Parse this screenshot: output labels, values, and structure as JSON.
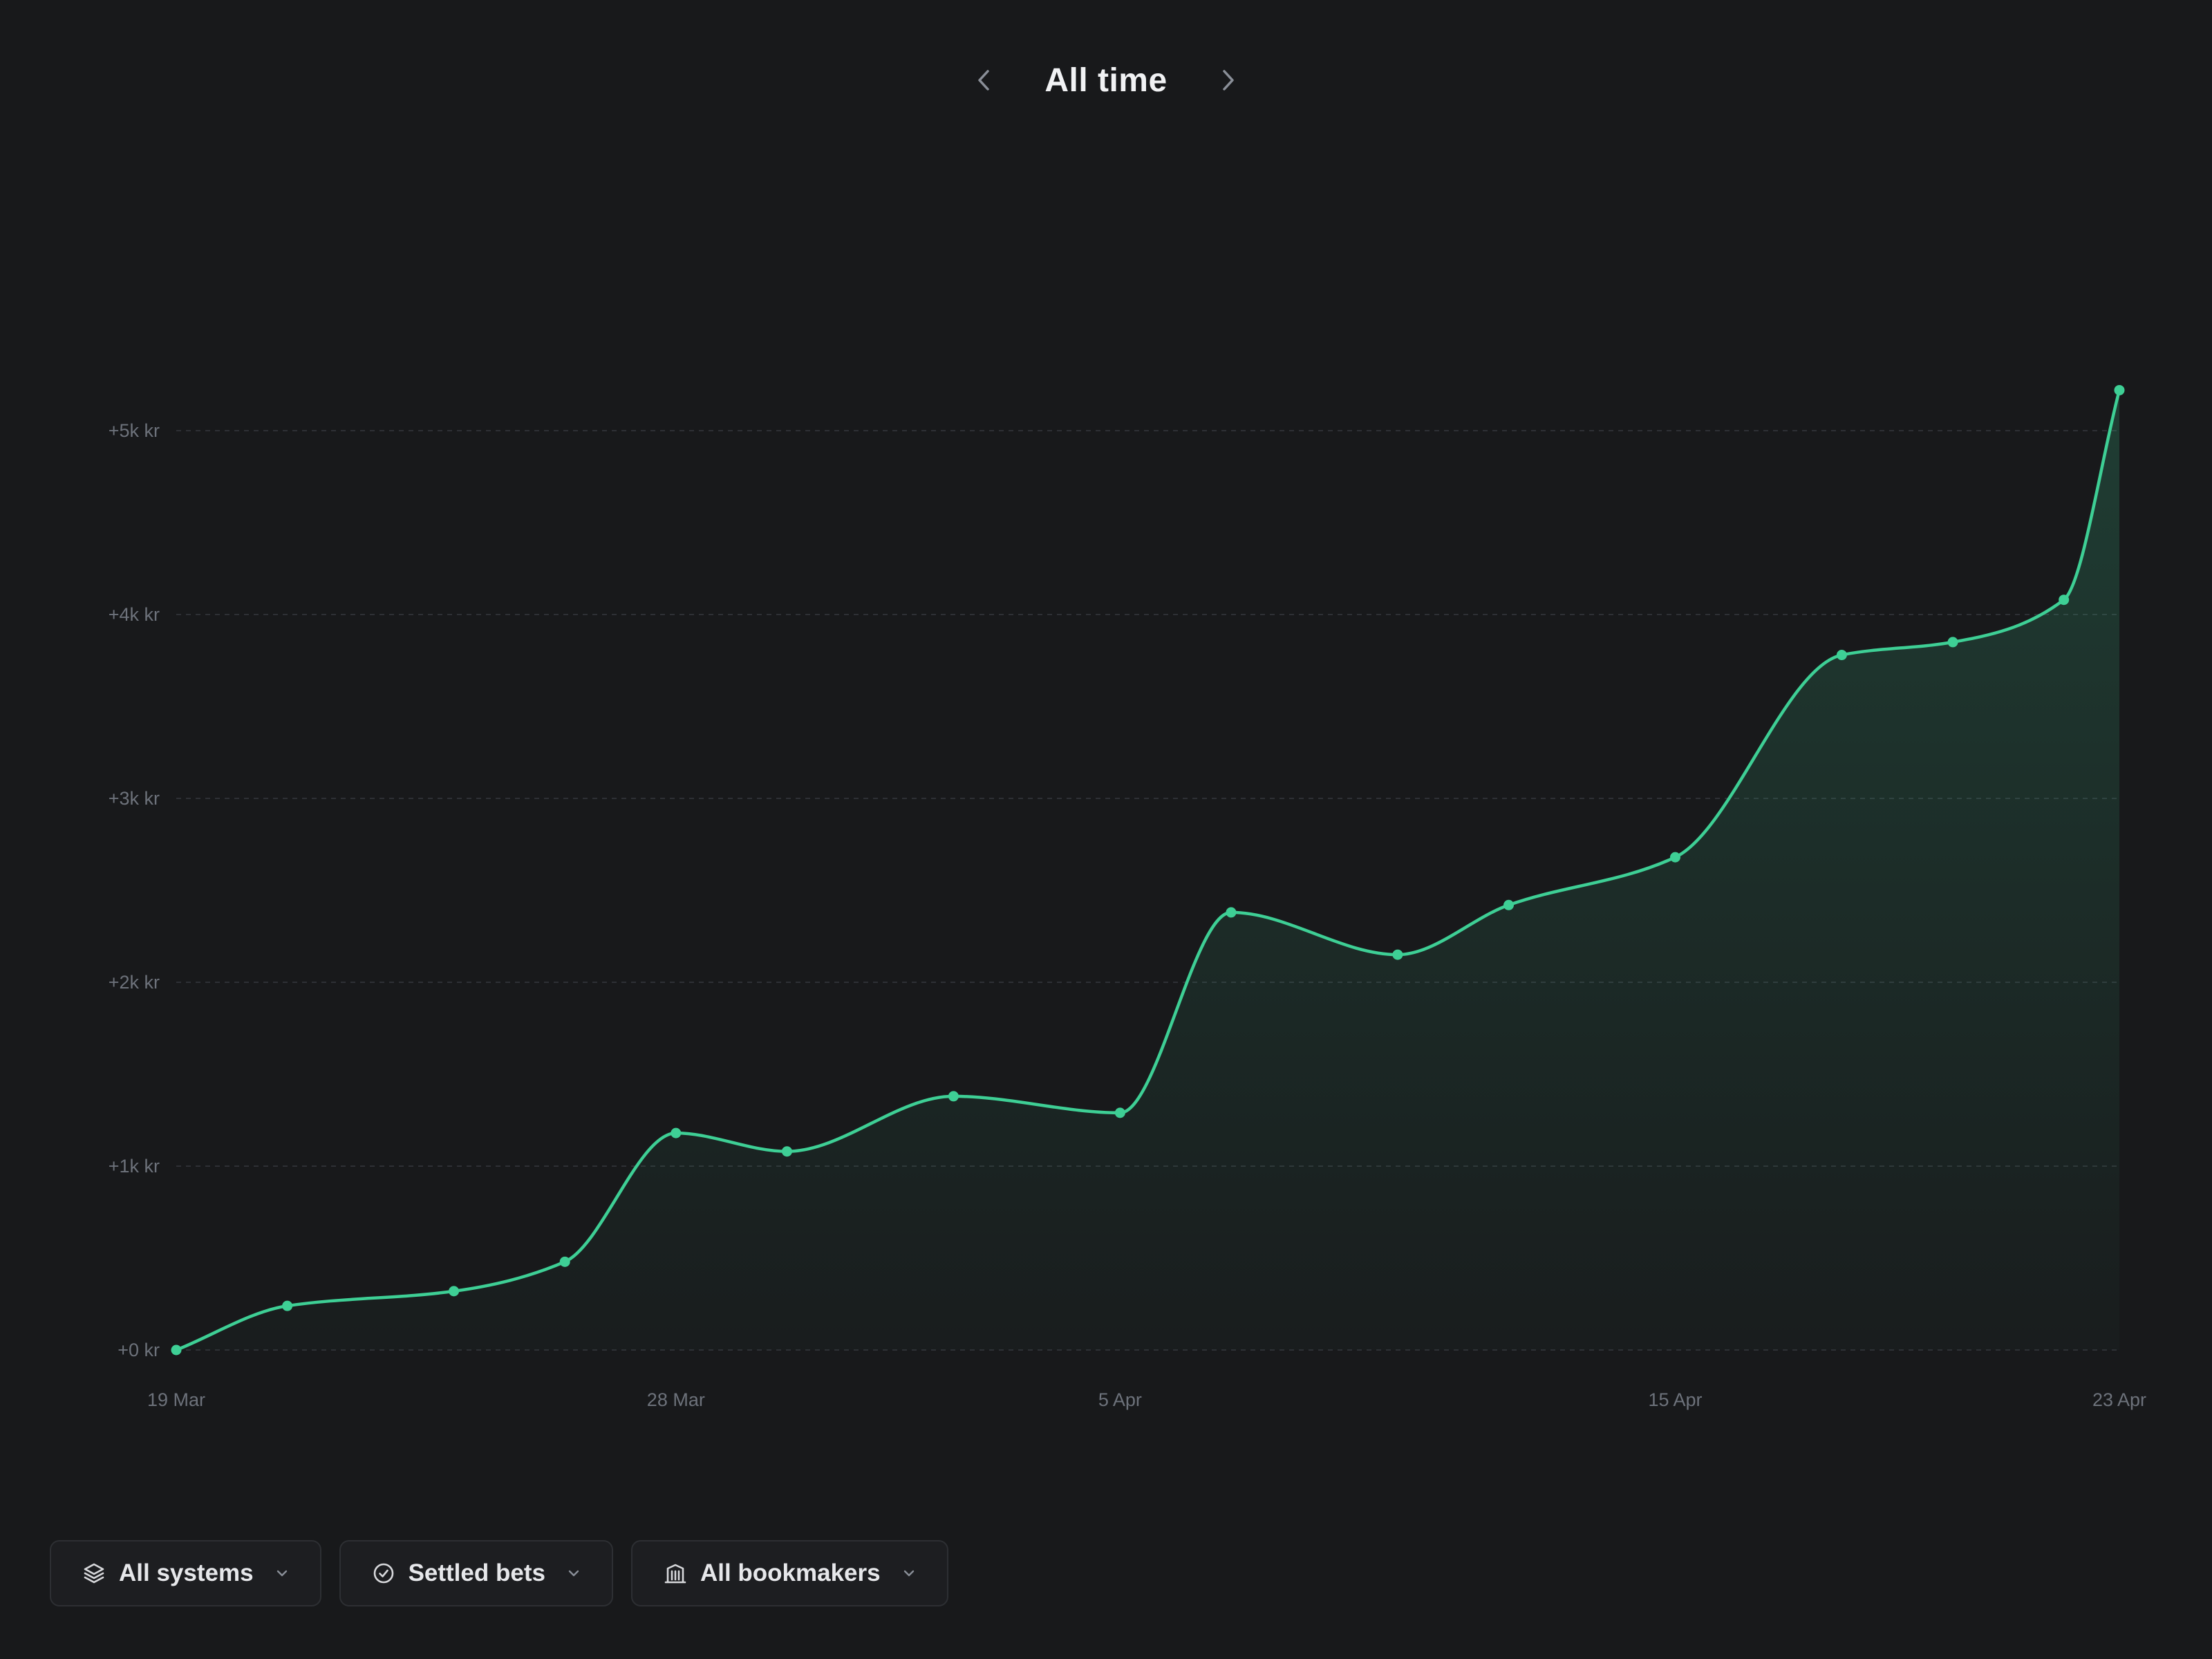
{
  "header": {
    "title": "All time",
    "prev_icon": "chevron-left-icon",
    "next_icon": "chevron-right-icon"
  },
  "filters": [
    {
      "label": "All systems",
      "icon": "layers-icon"
    },
    {
      "label": "Settled bets",
      "icon": "check-circle-icon"
    },
    {
      "label": "All bookmakers",
      "icon": "building-icon"
    }
  ],
  "colors": {
    "background": "#18191b",
    "line": "#3ecf95",
    "grid": "#2e3035",
    "axis_text": "#6d727b"
  },
  "chart_data": {
    "type": "area",
    "x_start": "19 Mar",
    "x_end": "23 Apr",
    "x": [
      "19 Mar",
      "21 Mar",
      "24 Mar",
      "26 Mar",
      "28 Mar",
      "30 Mar",
      "2 Apr",
      "5 Apr",
      "7 Apr",
      "10 Apr",
      "12 Apr",
      "15 Apr",
      "18 Apr",
      "20 Apr",
      "22 Apr",
      "23 Apr"
    ],
    "series": [
      {
        "values": [
          0,
          240,
          320,
          480,
          1180,
          1080,
          1380,
          1290,
          2380,
          2150,
          2420,
          2680,
          3780,
          3850,
          4080,
          5220
        ]
      }
    ],
    "ylim": [
      0,
      5000
    ],
    "yticks": [
      0,
      1000,
      2000,
      3000,
      4000,
      5000
    ],
    "ytick_labels": [
      "+0 kr",
      "+1k kr",
      "+2k kr",
      "+3k kr",
      "+4k kr",
      "+5k kr"
    ],
    "xtick_labels": [
      "19 Mar",
      "28 Mar",
      "5 Apr",
      "15 Apr",
      "23 Apr"
    ],
    "grid": true,
    "legend": "none"
  }
}
